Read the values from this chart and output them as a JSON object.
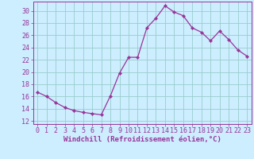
{
  "x": [
    0,
    1,
    2,
    3,
    4,
    5,
    6,
    7,
    8,
    9,
    10,
    11,
    12,
    13,
    14,
    15,
    16,
    17,
    18,
    19,
    20,
    21,
    22,
    23
  ],
  "y": [
    16.7,
    16.0,
    15.0,
    14.2,
    13.7,
    13.4,
    13.2,
    13.0,
    16.1,
    19.8,
    22.4,
    22.4,
    27.2,
    28.8,
    30.8,
    29.8,
    29.2,
    27.2,
    26.5,
    25.1,
    26.7,
    25.3,
    23.6,
    22.6
  ],
  "line_color": "#993399",
  "marker": "D",
  "marker_size": 2.2,
  "bg_color": "#cceeff",
  "grid_color": "#99cccc",
  "spine_color": "#993399",
  "tick_color": "#993399",
  "xlabel": "Windchill (Refroidissement éolien,°C)",
  "ylabel": "",
  "xlim": [
    -0.5,
    23.5
  ],
  "ylim": [
    11.5,
    31.5
  ],
  "yticks": [
    12,
    14,
    16,
    18,
    20,
    22,
    24,
    26,
    28,
    30
  ],
  "xticks": [
    0,
    1,
    2,
    3,
    4,
    5,
    6,
    7,
    8,
    9,
    10,
    11,
    12,
    13,
    14,
    15,
    16,
    17,
    18,
    19,
    20,
    21,
    22,
    23
  ],
  "xlabel_fontsize": 6.5,
  "tick_fontsize": 6.0,
  "linewidth": 0.9
}
